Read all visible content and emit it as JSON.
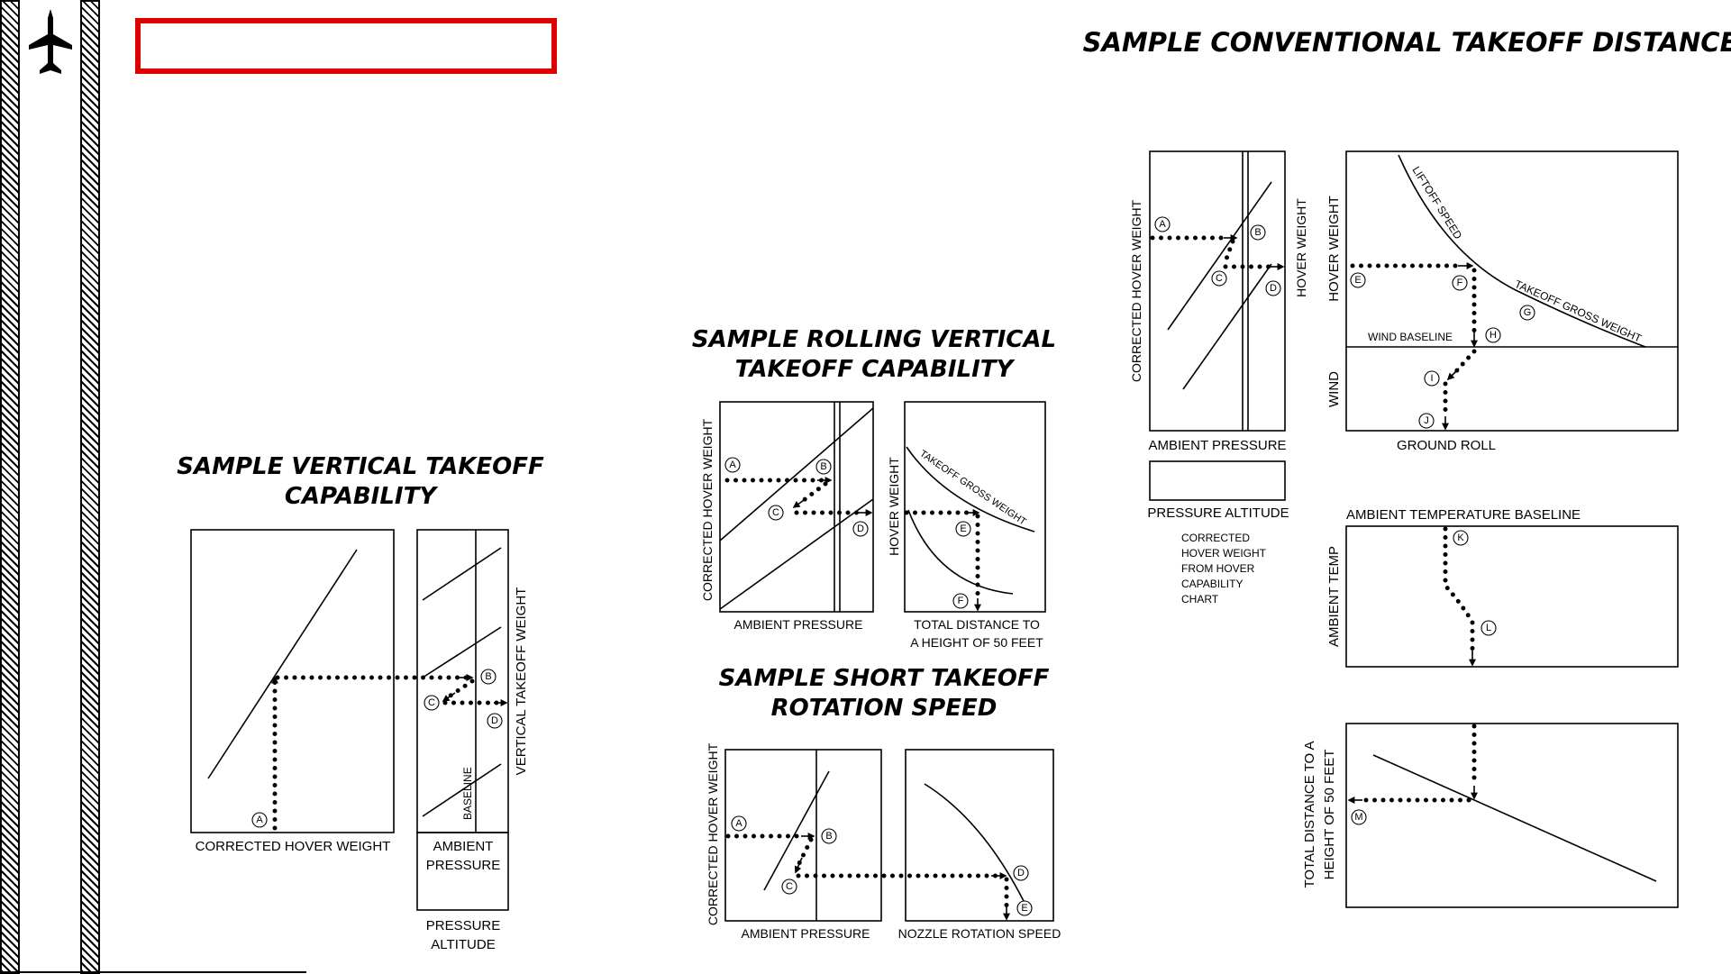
{
  "sidebar": {
    "icon": "jet-aircraft-icon"
  },
  "title_box": {
    "text": ""
  },
  "headings": {
    "conventional": "SAMPLE CONVENTIONAL TAKEOFF DISTANCE",
    "rolling_line1": "SAMPLE ROLLING VERTICAL",
    "rolling_line2": "TAKEOFF CAPABILITY",
    "vertical_line1": "SAMPLE VERTICAL TAKEOFF",
    "vertical_line2": "CAPABILITY",
    "short_line1": "SAMPLE SHORT TAKEOFF",
    "short_line2": "ROTATION SPEED"
  },
  "vertical": {
    "x_label": "CORRECTED HOVER WEIGHT",
    "y_label": "VERTICAL TAKEOFF WEIGHT",
    "baseline": "BASELINE",
    "ambient_line1": "AMBIENT",
    "ambient_line2": "PRESSURE",
    "altitude_line1": "PRESSURE",
    "altitude_line2": "ALTITUDE",
    "points": {
      "a": "A",
      "b": "B",
      "c": "C",
      "d": "D"
    }
  },
  "rolling": {
    "y_label_left": "CORRECTED HOVER WEIGHT",
    "x_label_left": "AMBIENT PRESSURE",
    "y_label_right": "HOVER WEIGHT",
    "curve_label": "TAKEOFF GROSS WEIGHT",
    "x_label_right_line1": "TOTAL DISTANCE TO",
    "x_label_right_line2": "A HEIGHT OF 50 FEET",
    "points": {
      "a": "A",
      "b": "B",
      "c": "C",
      "d": "D",
      "e": "E",
      "f": "F"
    }
  },
  "short": {
    "y_label": "CORRECTED HOVER WEIGHT",
    "x_label_left": "AMBIENT PRESSURE",
    "x_label_right": "NOZZLE ROTATION SPEED",
    "points": {
      "a": "A",
      "b": "B",
      "c": "C",
      "d": "D",
      "e": "E"
    }
  },
  "conventional": {
    "left_y_label": "CORRECTED HOVER WEIGHT",
    "hover_weight_mid": "HOVER WEIGHT",
    "ambient_pressure": "AMBIENT PRESSURE",
    "pressure_altitude": "PRESSURE ALTITUDE",
    "note_line1": "CORRECTED",
    "note_line2": "HOVER WEIGHT",
    "note_line3": "FROM HOVER",
    "note_line4": "CAPABILITY",
    "note_line5": "CHART",
    "hover_weight_right": "HOVER WEIGHT",
    "liftoff_speed": "LIFTOFF SPEED",
    "takeoff_gross_weight": "TAKEOFF GROSS WEIGHT",
    "wind_baseline": "WIND BASELINE",
    "wind": "WIND",
    "ground_roll": "GROUND ROLL",
    "ambient_temp_baseline": "AMBIENT TEMPERATURE BASELINE",
    "ambient_temp": "AMBIENT TEMP",
    "total_distance_line1": "TOTAL DISTANCE TO A",
    "total_distance_line2": "HEIGHT OF 50 FEET",
    "points": {
      "a": "A",
      "b": "B",
      "c": "C",
      "d": "D",
      "e": "E",
      "f": "F",
      "g": "G",
      "h": "H",
      "i": "I",
      "j": "J",
      "k": "K",
      "l": "L",
      "m": "M"
    }
  }
}
